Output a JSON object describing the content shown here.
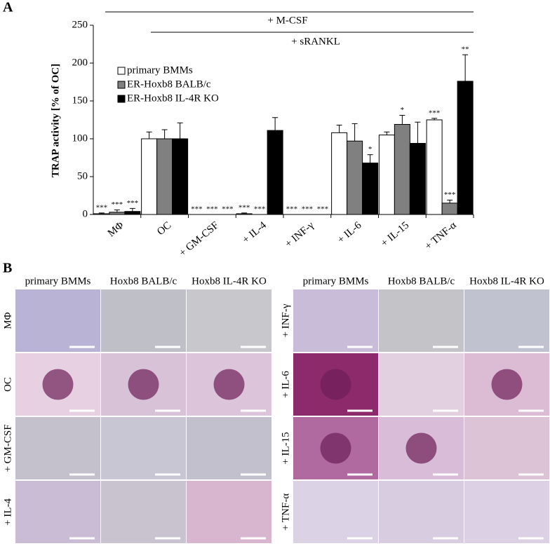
{
  "panel_labels": [
    "A",
    "B"
  ],
  "chart_data": {
    "type": "bar",
    "y_label": "TRAP activity [% of OC]",
    "annotations": [
      "+ M-CSF",
      "+ sRANKL"
    ],
    "categories": [
      "MΦ",
      "OC",
      "+ GM-CSF",
      "+ IL-4",
      "+ INF-γ",
      "+ IL-6",
      "+ IL-15",
      "+ TNF-α"
    ],
    "series": [
      {
        "name": "primary BMMs",
        "color": "#ffffff",
        "values": [
          1,
          100,
          0,
          1,
          0,
          108,
          105,
          125
        ],
        "errors": [
          1,
          9,
          0,
          1,
          0,
          10,
          4,
          2
        ],
        "significance": [
          "***",
          null,
          "***",
          "***",
          "***",
          null,
          null,
          "***"
        ]
      },
      {
        "name": "ER-Hoxb8 BALB/c",
        "color": "#808080",
        "values": [
          3,
          100,
          0,
          0,
          0,
          97,
          119,
          15
        ],
        "errors": [
          3,
          12,
          0,
          0,
          0,
          23,
          12,
          4
        ],
        "significance": [
          "***",
          null,
          "***",
          "***",
          "***",
          null,
          "*",
          "***"
        ]
      },
      {
        "name": "ER-Hoxb8 IL-4R KO",
        "color": "#000000",
        "values": [
          4,
          100,
          0,
          111,
          0,
          68,
          94,
          176
        ],
        "errors": [
          4,
          21,
          0,
          17,
          0,
          11,
          28,
          35
        ],
        "significance": [
          "***",
          null,
          "***",
          null,
          "***",
          "*",
          null,
          "**"
        ]
      }
    ],
    "ylim": [
      0,
      250
    ],
    "yticks": [
      0,
      50,
      100,
      150,
      200,
      250
    ]
  },
  "micrographs": {
    "left": {
      "columns": [
        "primary BMMs",
        "Hoxb8 BALB/c",
        "Hoxb8 IL-4R KO"
      ],
      "rows": [
        "MΦ",
        "OC",
        "+ GM-CSF",
        "+ IL-4"
      ]
    },
    "right": {
      "columns": [
        "primary BMMs",
        "Hoxb8 BALB/c",
        "Hoxb8 IL-4R KO"
      ],
      "rows": [
        "+ INF-γ",
        "+ IL-6",
        "+ IL-15",
        "+ TNF-α"
      ]
    }
  }
}
